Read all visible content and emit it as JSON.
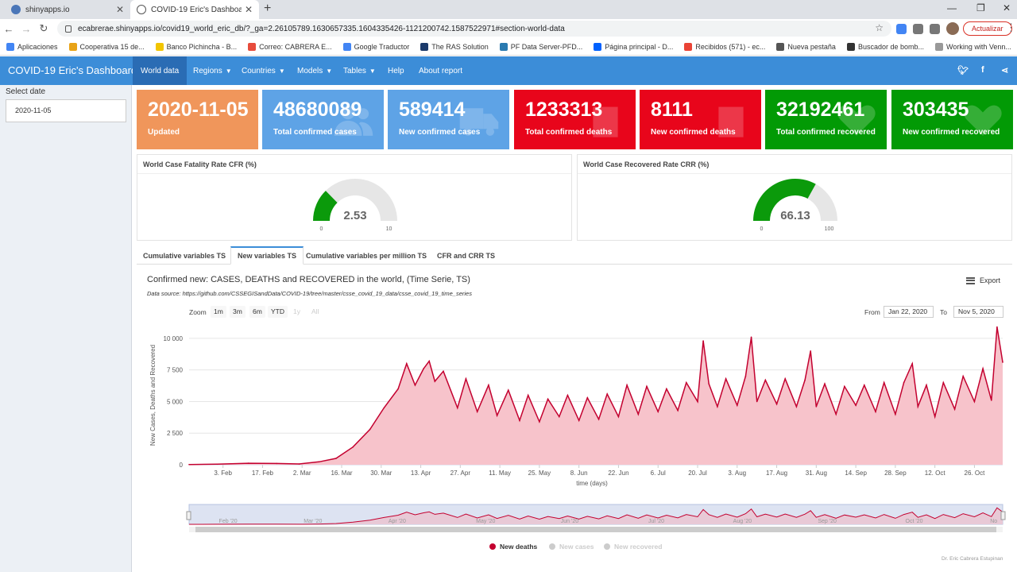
{
  "browser": {
    "tabs": [
      {
        "label": "shinyapps.io"
      },
      {
        "label": "COVID-19 Eric's Dashboard"
      }
    ],
    "url": "ecabrerae.shinyapps.io/covid19_world_eric_db/?_ga=2.26105789.1630657335.1604335426-1121200742.1587522971#section-world-data",
    "update_button": "Actualizar",
    "bookmarks": [
      "Aplicaciones",
      "Cooperativa 15 de...",
      "Banco Pichincha - B...",
      "Correo: CABRERA E...",
      "Google Traductor",
      "The RAS Solution",
      "PF Data Server-PFD...",
      "Página principal - D...",
      "Recibidos (571) - ec...",
      "Nueva pestaña",
      "Buscador de bomb...",
      "Working with Venn..."
    ]
  },
  "navbar": {
    "brand": "COVID-19 Eric's Dashboard",
    "items": [
      {
        "label": "World data"
      },
      {
        "label": "Regions"
      },
      {
        "label": "Countries"
      },
      {
        "label": "Models"
      },
      {
        "label": "Tables"
      },
      {
        "label": "Help"
      },
      {
        "label": "About report"
      }
    ],
    "social": [
      "twitter-icon",
      "facebook-icon",
      "share-icon"
    ]
  },
  "sidebar": {
    "select_date_label": "Select date",
    "date_value": "2020-11-05"
  },
  "value_boxes": [
    {
      "value": "2020-11-05",
      "label": "Updated",
      "color": "#f0965b"
    },
    {
      "value": "48680089",
      "label": "Total confirmed cases",
      "color": "#5ea3e6"
    },
    {
      "value": "589414",
      "label": "New confirmed cases",
      "color": "#5ea3e6"
    },
    {
      "value": "1233313",
      "label": "Total confirmed deaths",
      "color": "#e8051b"
    },
    {
      "value": "8111",
      "label": "New confirmed deaths",
      "color": "#e8051b"
    },
    {
      "value": "32192461",
      "label": "Total confirmed recovered",
      "color": "#029a05"
    },
    {
      "value": "303435",
      "label": "New confirmed recovered",
      "color": "#029a05"
    }
  ],
  "gauges": [
    {
      "title": "World Case Fatality Rate CFR (%)",
      "value": 2.53,
      "display": "2.53",
      "min": 0,
      "max": 10,
      "min_label": "0",
      "max_label": "10"
    },
    {
      "title": "World Case Recovered Rate CRR (%)",
      "value": 66.13,
      "display": "66.13",
      "min": 0,
      "max": 100,
      "min_label": "0",
      "max_label": "100"
    }
  ],
  "tabs": [
    {
      "label": "Cumulative variables TS"
    },
    {
      "label": "New variables TS"
    },
    {
      "label": "Cumulative variables per million TS"
    },
    {
      "label": "CFR and CRR TS"
    }
  ],
  "chart_panel": {
    "title": "Confirmed new: CASES, DEATHS and RECOVERED in the world, (Time Serie, TS)",
    "source": "Data source: https://github.com/CSSEGISandData/COVID-19/tree/master/csse_covid_19_data/csse_covid_19_time_series",
    "export_label": "Export",
    "zoom_label": "Zoom",
    "zoom_buttons": [
      "1m",
      "3m",
      "6m",
      "YTD",
      "1y",
      "All"
    ],
    "from_label": "From",
    "from_value": "Jan 22, 2020",
    "to_label": "To",
    "to_value": "Nov 5, 2020",
    "credits": "Dr. Eric Cabrera Estupinan",
    "navigator_labels": [
      "Feb '20",
      "Mar '20",
      "Apr '20",
      "May '20",
      "Jun '20",
      "Jul '20",
      "Aug '20",
      "Sep '20",
      "Oct '20",
      "No"
    ]
  },
  "chart_data": {
    "type": "area",
    "xlabel": "time (days)",
    "ylabel": "New Cases, Deaths and Recovered",
    "x_range": [
      "2020-01-22",
      "2020-11-05"
    ],
    "ylim": [
      0,
      11000
    ],
    "yticks": [
      0,
      2500,
      5000,
      7500,
      10000
    ],
    "ytick_labels": [
      "0",
      "2 500",
      "5 000",
      "7 500",
      "10 000"
    ],
    "xtick_labels": [
      "3. Feb",
      "17. Feb",
      "2. Mar",
      "16. Mar",
      "30. Mar",
      "13. Apr",
      "27. Apr",
      "11. May",
      "25. May",
      "8. Jun",
      "22. Jun",
      "6. Jul",
      "20. Jul",
      "3. Aug",
      "17. Aug",
      "31. Aug",
      "14. Sep",
      "28. Sep",
      "12. Oct",
      "26. Oct"
    ],
    "series": [
      {
        "name": "New deaths",
        "color": "#c3002f",
        "fill": "#f7c3cb",
        "visible": true,
        "points": [
          [
            "2020-01-22",
            17
          ],
          [
            "2020-02-01",
            46
          ],
          [
            "2020-02-12",
            120
          ],
          [
            "2020-02-22",
            100
          ],
          [
            "2020-03-01",
            60
          ],
          [
            "2020-03-08",
            230
          ],
          [
            "2020-03-14",
            500
          ],
          [
            "2020-03-20",
            1400
          ],
          [
            "2020-03-26",
            2800
          ],
          [
            "2020-03-31",
            4500
          ],
          [
            "2020-04-05",
            6000
          ],
          [
            "2020-04-08",
            8000
          ],
          [
            "2020-04-11",
            6300
          ],
          [
            "2020-04-14",
            7600
          ],
          [
            "2020-04-16",
            8200
          ],
          [
            "2020-04-18",
            6600
          ],
          [
            "2020-04-21",
            7400
          ],
          [
            "2020-04-26",
            4500
          ],
          [
            "2020-04-29",
            6800
          ],
          [
            "2020-05-03",
            4200
          ],
          [
            "2020-05-07",
            6300
          ],
          [
            "2020-05-10",
            3900
          ],
          [
            "2020-05-14",
            5900
          ],
          [
            "2020-05-18",
            3500
          ],
          [
            "2020-05-21",
            5500
          ],
          [
            "2020-05-25",
            3400
          ],
          [
            "2020-05-28",
            5200
          ],
          [
            "2020-06-01",
            3800
          ],
          [
            "2020-06-04",
            5500
          ],
          [
            "2020-06-08",
            3500
          ],
          [
            "2020-06-11",
            5300
          ],
          [
            "2020-06-15",
            3600
          ],
          [
            "2020-06-18",
            5600
          ],
          [
            "2020-06-22",
            3800
          ],
          [
            "2020-06-25",
            6300
          ],
          [
            "2020-06-29",
            4000
          ],
          [
            "2020-07-02",
            6200
          ],
          [
            "2020-07-06",
            4200
          ],
          [
            "2020-07-09",
            6000
          ],
          [
            "2020-07-13",
            4300
          ],
          [
            "2020-07-16",
            6500
          ],
          [
            "2020-07-20",
            5000
          ],
          [
            "2020-07-22",
            9800
          ],
          [
            "2020-07-24",
            6400
          ],
          [
            "2020-07-27",
            4600
          ],
          [
            "2020-07-30",
            6800
          ],
          [
            "2020-08-03",
            4700
          ],
          [
            "2020-08-06",
            7000
          ],
          [
            "2020-08-08",
            10100
          ],
          [
            "2020-08-10",
            5000
          ],
          [
            "2020-08-13",
            6700
          ],
          [
            "2020-08-17",
            4800
          ],
          [
            "2020-08-20",
            6800
          ],
          [
            "2020-08-24",
            4600
          ],
          [
            "2020-08-27",
            6700
          ],
          [
            "2020-08-29",
            9000
          ],
          [
            "2020-08-31",
            4600
          ],
          [
            "2020-09-03",
            6400
          ],
          [
            "2020-09-07",
            4000
          ],
          [
            "2020-09-10",
            6200
          ],
          [
            "2020-09-14",
            4700
          ],
          [
            "2020-09-17",
            6300
          ],
          [
            "2020-09-21",
            4200
          ],
          [
            "2020-09-24",
            6500
          ],
          [
            "2020-09-28",
            4000
          ],
          [
            "2020-10-01",
            6500
          ],
          [
            "2020-10-04",
            8000
          ],
          [
            "2020-10-06",
            4600
          ],
          [
            "2020-10-09",
            6300
          ],
          [
            "2020-10-12",
            3800
          ],
          [
            "2020-10-15",
            6500
          ],
          [
            "2020-10-19",
            4400
          ],
          [
            "2020-10-22",
            7000
          ],
          [
            "2020-10-26",
            5000
          ],
          [
            "2020-10-29",
            7600
          ],
          [
            "2020-11-01",
            5100
          ],
          [
            "2020-11-03",
            10900
          ],
          [
            "2020-11-05",
            8111
          ]
        ]
      },
      {
        "name": "New cases",
        "color": "#cccccc",
        "visible": false
      },
      {
        "name": "New recovered",
        "color": "#cccccc",
        "visible": false
      }
    ]
  }
}
